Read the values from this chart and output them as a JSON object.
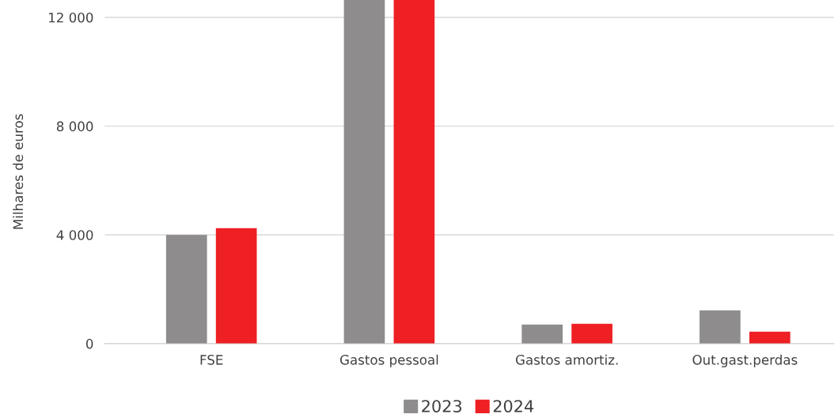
{
  "chart_data": {
    "type": "bar",
    "ylabel": "Milhares de euros",
    "categories": [
      "FSE",
      "Gastos pessoal",
      "Gastos amortiz.",
      "Out.gast.perdas"
    ],
    "series": [
      {
        "name": "2023",
        "color": "#8e8c8d",
        "values": [
          4000,
          12640,
          700,
          1220
        ]
      },
      {
        "name": "2024",
        "color": "#ee2024",
        "values": [
          4250,
          12640,
          730,
          440
        ]
      }
    ],
    "ylim": [
      0,
      12640
    ],
    "yticks": [
      {
        "value": 0,
        "label": "0"
      },
      {
        "value": 4000,
        "label": "4 000"
      },
      {
        "value": 8000,
        "label": "8 000"
      },
      {
        "value": 12000,
        "label": "12 000"
      }
    ],
    "grid": "y",
    "legend": "bottom"
  }
}
